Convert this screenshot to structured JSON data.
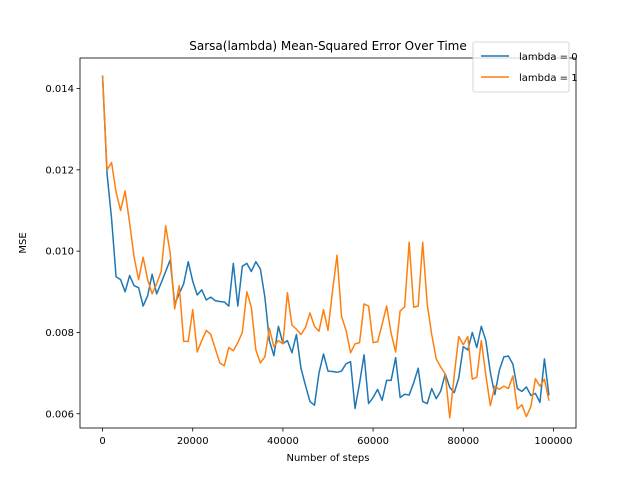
{
  "chart_data": {
    "type": "line",
    "title": "Sarsa(lambda) Mean-Squared Error Over Time",
    "xlabel": "Number of steps",
    "ylabel": "MSE",
    "xlim": [
      -5000,
      105000
    ],
    "ylim": [
      0.00565,
      0.01475
    ],
    "xticks": [
      0,
      20000,
      40000,
      60000,
      80000,
      100000
    ],
    "xtick_labels": [
      "0",
      "20000",
      "40000",
      "60000",
      "80000",
      "100000"
    ],
    "yticks": [
      0.006,
      0.008,
      0.01,
      0.012,
      0.014
    ],
    "ytick_labels": [
      "0.006",
      "0.008",
      "0.010",
      "0.012",
      "0.014"
    ],
    "grid": false,
    "legend_position": "top-right",
    "series": [
      {
        "name": "lambda = 0",
        "color": "#1f77b4",
        "x": [
          0,
          1000,
          2000,
          3000,
          4000,
          5000,
          6000,
          7000,
          8000,
          9000,
          10000,
          11000,
          12000,
          13000,
          14000,
          15000,
          16000,
          17000,
          18000,
          19000,
          20000,
          21000,
          22000,
          23000,
          24000,
          25000,
          26000,
          27000,
          28000,
          29000,
          30000,
          31000,
          32000,
          33000,
          34000,
          35000,
          36000,
          37000,
          38000,
          39000,
          40000,
          41000,
          42000,
          43000,
          44000,
          45000,
          46000,
          47000,
          48000,
          49000,
          50000,
          51000,
          52000,
          53000,
          54000,
          55000,
          56000,
          57000,
          58000,
          59000,
          60000,
          61000,
          62000,
          63000,
          64000,
          65000,
          66000,
          67000,
          68000,
          69000,
          70000,
          71000,
          72000,
          73000,
          74000,
          75000,
          76000,
          77000,
          78000,
          79000,
          80000,
          81000,
          82000,
          83000,
          84000,
          85000,
          86000,
          87000,
          88000,
          89000,
          90000,
          91000,
          92000,
          93000,
          94000,
          95000,
          96000,
          97000,
          98000,
          99000
        ],
        "y": [
          0.01432,
          0.0119,
          0.0108,
          0.00937,
          0.0093,
          0.009,
          0.0094,
          0.00915,
          0.0091,
          0.00865,
          0.0089,
          0.00943,
          0.00895,
          0.00922,
          0.0095,
          0.00978,
          0.0087,
          0.00895,
          0.0092,
          0.00974,
          0.00926,
          0.00892,
          0.00905,
          0.0088,
          0.00887,
          0.00878,
          0.00876,
          0.00875,
          0.00865,
          0.0097,
          0.00865,
          0.00963,
          0.0097,
          0.0095,
          0.00974,
          0.00956,
          0.00887,
          0.0078,
          0.00743,
          0.00815,
          0.00773,
          0.0078,
          0.0075,
          0.00795,
          0.00712,
          0.0067,
          0.0063,
          0.00621,
          0.007,
          0.00747,
          0.00705,
          0.00704,
          0.00702,
          0.00705,
          0.00723,
          0.00728,
          0.00613,
          0.00675,
          0.00745,
          0.00625,
          0.0064,
          0.0066,
          0.00633,
          0.00682,
          0.00682,
          0.00738,
          0.0064,
          0.00648,
          0.00646,
          0.00676,
          0.00712,
          0.0063,
          0.00625,
          0.00662,
          0.00637,
          0.00656,
          0.00698,
          0.00665,
          0.00652,
          0.00688,
          0.00765,
          0.00757,
          0.008,
          0.00763,
          0.00815,
          0.0078,
          0.00702,
          0.00647,
          0.00707,
          0.0074,
          0.00742,
          0.00722,
          0.00662,
          0.00655,
          0.00666,
          0.00645,
          0.0065,
          0.00628,
          0.00735,
          0.00645
        ]
      },
      {
        "name": "lambda = 1",
        "color": "#ff7f0e",
        "x": [
          0,
          1000,
          2000,
          3000,
          4000,
          5000,
          6000,
          7000,
          8000,
          9000,
          10000,
          11000,
          12000,
          13000,
          14000,
          15000,
          16000,
          17000,
          18000,
          19000,
          20000,
          21000,
          22000,
          23000,
          24000,
          25000,
          26000,
          27000,
          28000,
          29000,
          30000,
          31000,
          32000,
          33000,
          34000,
          35000,
          36000,
          37000,
          38000,
          39000,
          40000,
          41000,
          42000,
          43000,
          44000,
          45000,
          46000,
          47000,
          48000,
          49000,
          50000,
          51000,
          52000,
          53000,
          54000,
          55000,
          56000,
          57000,
          58000,
          59000,
          60000,
          61000,
          62000,
          63000,
          64000,
          65000,
          66000,
          67000,
          68000,
          69000,
          70000,
          71000,
          72000,
          73000,
          74000,
          75000,
          76000,
          77000,
          78000,
          79000,
          80000,
          81000,
          82000,
          83000,
          84000,
          85000,
          86000,
          87000,
          88000,
          89000,
          90000,
          91000,
          92000,
          93000,
          94000,
          95000,
          96000,
          97000,
          98000,
          99000
        ],
        "y": [
          0.01432,
          0.012,
          0.01218,
          0.01145,
          0.011,
          0.01148,
          0.0107,
          0.00985,
          0.0093,
          0.00985,
          0.0093,
          0.00895,
          0.0092,
          0.0095,
          0.01062,
          0.00995,
          0.00858,
          0.00915,
          0.00778,
          0.00778,
          0.00856,
          0.00752,
          0.0078,
          0.00805,
          0.00795,
          0.0076,
          0.00725,
          0.00718,
          0.00763,
          0.00755,
          0.00775,
          0.008,
          0.009,
          0.00862,
          0.00757,
          0.00725,
          0.0074,
          0.0081,
          0.00765,
          0.0078,
          0.00772,
          0.00898,
          0.00818,
          0.00808,
          0.00795,
          0.00812,
          0.00848,
          0.00815,
          0.00803,
          0.00856,
          0.00805,
          0.00902,
          0.0099,
          0.0084,
          0.00805,
          0.0075,
          0.00772,
          0.00775,
          0.0087,
          0.00865,
          0.00775,
          0.00777,
          0.0082,
          0.00865,
          0.00798,
          0.00752,
          0.00853,
          0.00863,
          0.01022,
          0.00862,
          0.00865,
          0.01022,
          0.0087,
          0.00795,
          0.00735,
          0.00715,
          0.00698,
          0.0059,
          0.00695,
          0.0079,
          0.0077,
          0.0079,
          0.00685,
          0.0069,
          0.0078,
          0.00695,
          0.0062,
          0.00668,
          0.0066,
          0.00668,
          0.00662,
          0.00693,
          0.00612,
          0.00622,
          0.00593,
          0.00618,
          0.00686,
          0.00668,
          0.00685,
          0.00632
        ]
      }
    ]
  }
}
